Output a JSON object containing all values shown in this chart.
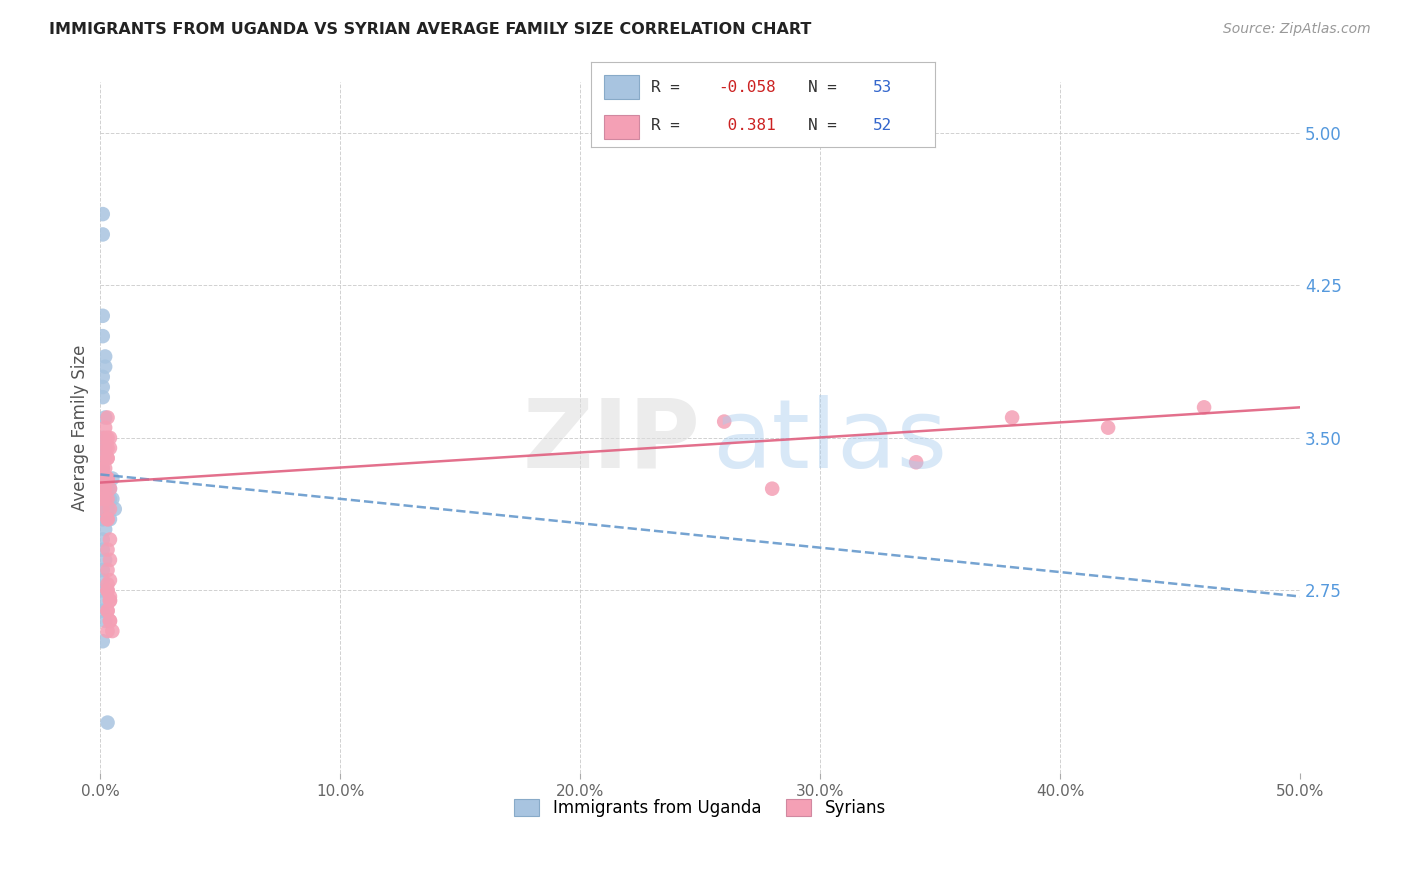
{
  "title": "IMMIGRANTS FROM UGANDA VS SYRIAN AVERAGE FAMILY SIZE CORRELATION CHART",
  "source": "Source: ZipAtlas.com",
  "ylabel": "Average Family Size",
  "yticks": [
    2.75,
    3.5,
    4.25,
    5.0
  ],
  "ylim": [
    1.85,
    5.25
  ],
  "xlim": [
    0.0,
    0.5
  ],
  "uganda_color": "#a8c4e0",
  "syrian_color": "#f4a0b5",
  "uganda_line_color": "#6699cc",
  "syrian_line_color": "#e06080",
  "background_color": "#ffffff",
  "uganda_x": [
    0.001,
    0.001,
    0.002,
    0.001,
    0.001,
    0.001,
    0.001,
    0.001,
    0.001,
    0.001,
    0.001,
    0.001,
    0.001,
    0.001,
    0.001,
    0.001,
    0.002,
    0.001,
    0.001,
    0.001,
    0.001,
    0.002,
    0.001,
    0.001,
    0.001,
    0.002,
    0.002,
    0.001,
    0.001,
    0.001,
    0.001,
    0.002,
    0.001,
    0.001,
    0.002,
    0.001,
    0.001,
    0.001,
    0.001,
    0.001,
    0.002,
    0.001,
    0.003,
    0.003,
    0.003,
    0.003,
    0.004,
    0.004,
    0.004,
    0.005,
    0.005,
    0.006,
    0.003
  ],
  "uganda_y": [
    3.3,
    3.35,
    3.45,
    3.2,
    3.15,
    3.25,
    3.1,
    3.2,
    3.3,
    3.15,
    3.1,
    3.2,
    3.3,
    3.25,
    3.15,
    3.2,
    3.3,
    3.35,
    3.4,
    3.45,
    3.5,
    3.6,
    3.7,
    3.75,
    3.8,
    3.85,
    3.9,
    4.0,
    4.1,
    4.5,
    4.6,
    3.05,
    3.0,
    2.95,
    2.9,
    2.85,
    2.8,
    2.75,
    2.7,
    2.65,
    2.6,
    2.5,
    3.2,
    3.25,
    3.3,
    3.15,
    3.2,
    3.25,
    3.1,
    3.2,
    3.3,
    3.15,
    2.1
  ],
  "syrian_x": [
    0.001,
    0.001,
    0.002,
    0.002,
    0.001,
    0.001,
    0.002,
    0.003,
    0.003,
    0.002,
    0.003,
    0.001,
    0.002,
    0.003,
    0.001,
    0.002,
    0.003,
    0.004,
    0.003,
    0.004,
    0.002,
    0.003,
    0.004,
    0.003,
    0.002,
    0.003,
    0.004,
    0.003,
    0.004,
    0.003,
    0.003,
    0.004,
    0.003,
    0.004,
    0.003,
    0.004,
    0.003,
    0.004,
    0.005,
    0.004,
    0.003,
    0.003,
    0.004,
    0.003,
    0.004,
    0.003,
    0.26,
    0.38,
    0.46,
    0.28,
    0.34,
    0.42
  ],
  "syrian_y": [
    3.3,
    3.35,
    3.45,
    3.5,
    3.25,
    3.3,
    3.4,
    3.45,
    3.5,
    3.3,
    3.4,
    3.2,
    3.25,
    3.3,
    3.15,
    3.2,
    3.3,
    3.45,
    3.1,
    3.0,
    3.55,
    3.6,
    3.5,
    3.4,
    3.35,
    3.3,
    3.25,
    3.2,
    3.15,
    3.1,
    2.95,
    2.9,
    2.85,
    2.8,
    2.75,
    2.7,
    2.65,
    2.6,
    2.55,
    2.7,
    2.75,
    2.65,
    2.6,
    2.55,
    2.72,
    2.78,
    3.58,
    3.6,
    3.65,
    3.25,
    3.38,
    3.55
  ],
  "uganda_line_x0": 0.0,
  "uganda_line_x1": 0.5,
  "uganda_line_y0": 3.32,
  "uganda_line_y1": 2.72,
  "syrian_line_x0": 0.0,
  "syrian_line_x1": 0.5,
  "syrian_line_y0": 3.28,
  "syrian_line_y1": 3.65
}
